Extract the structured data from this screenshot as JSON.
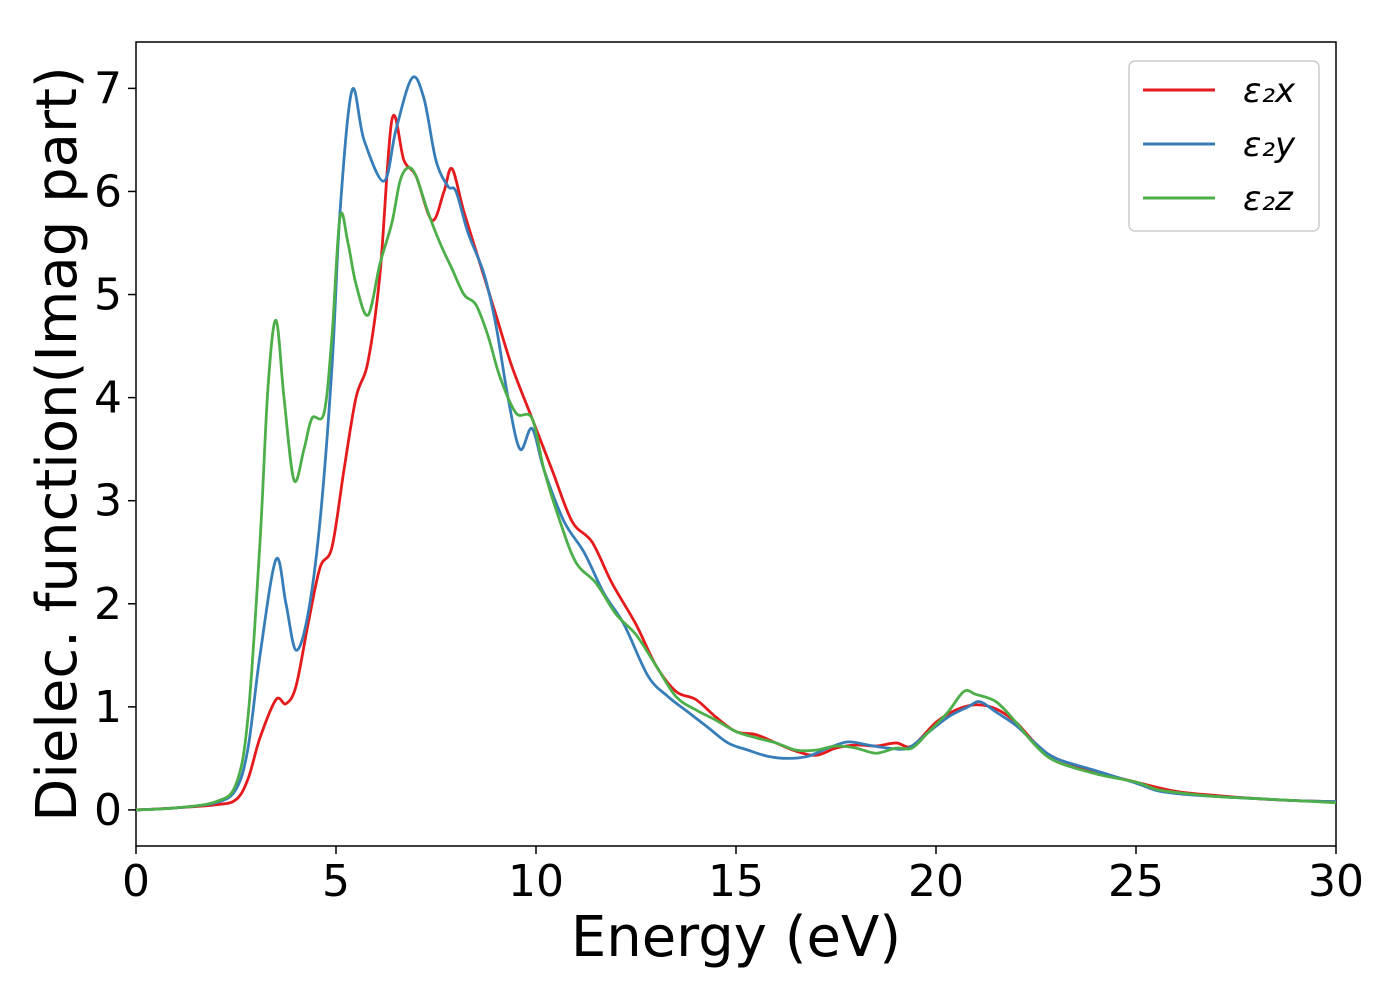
{
  "chart_data": {
    "type": "line",
    "xlabel": "Energy (eV)",
    "ylabel": "Dielec. function(Imag part)",
    "xlim": [
      0,
      30
    ],
    "ylim": [
      -0.35,
      7.45
    ],
    "xticks": [
      0,
      5,
      10,
      15,
      20,
      25,
      30
    ],
    "yticks": [
      0,
      1,
      2,
      3,
      4,
      5,
      6,
      7
    ],
    "grid": false,
    "legend_position": "top-right",
    "series": [
      {
        "name": "ε₂x",
        "color": "#e41a1c",
        "points": [
          [
            0,
            0
          ],
          [
            1,
            0.02
          ],
          [
            2,
            0.05
          ],
          [
            2.5,
            0.1
          ],
          [
            2.8,
            0.3
          ],
          [
            3.1,
            0.7
          ],
          [
            3.5,
            1.07
          ],
          [
            3.75,
            1.03
          ],
          [
            4.0,
            1.2
          ],
          [
            4.3,
            1.8
          ],
          [
            4.6,
            2.35
          ],
          [
            4.9,
            2.55
          ],
          [
            5.2,
            3.3
          ],
          [
            5.5,
            4.0
          ],
          [
            5.8,
            4.35
          ],
          [
            6.1,
            5.2
          ],
          [
            6.4,
            6.7
          ],
          [
            6.7,
            6.3
          ],
          [
            7.0,
            6.15
          ],
          [
            7.4,
            5.72
          ],
          [
            7.7,
            6.0
          ],
          [
            7.9,
            6.22
          ],
          [
            8.2,
            5.8
          ],
          [
            8.6,
            5.3
          ],
          [
            9.0,
            4.8
          ],
          [
            9.4,
            4.3
          ],
          [
            9.9,
            3.8
          ],
          [
            10.4,
            3.3
          ],
          [
            10.9,
            2.8
          ],
          [
            11.4,
            2.6
          ],
          [
            11.9,
            2.2
          ],
          [
            12.5,
            1.8
          ],
          [
            13.0,
            1.4
          ],
          [
            13.5,
            1.15
          ],
          [
            14.0,
            1.07
          ],
          [
            14.5,
            0.9
          ],
          [
            15.0,
            0.76
          ],
          [
            15.5,
            0.73
          ],
          [
            16.0,
            0.65
          ],
          [
            16.5,
            0.57
          ],
          [
            17.0,
            0.53
          ],
          [
            17.5,
            0.6
          ],
          [
            18.0,
            0.63
          ],
          [
            18.5,
            0.62
          ],
          [
            19.0,
            0.65
          ],
          [
            19.4,
            0.62
          ],
          [
            20.0,
            0.85
          ],
          [
            20.5,
            0.97
          ],
          [
            21.0,
            1.02
          ],
          [
            21.5,
            0.98
          ],
          [
            22.0,
            0.85
          ],
          [
            22.5,
            0.64
          ],
          [
            23.0,
            0.5
          ],
          [
            24.0,
            0.37
          ],
          [
            25.0,
            0.27
          ],
          [
            26.0,
            0.18
          ],
          [
            27.0,
            0.14
          ],
          [
            28.0,
            0.11
          ],
          [
            29.0,
            0.09
          ],
          [
            30.0,
            0.08
          ]
        ]
      },
      {
        "name": "ε₂y",
        "color": "#377eb8",
        "points": [
          [
            0,
            0
          ],
          [
            1,
            0.02
          ],
          [
            2,
            0.07
          ],
          [
            2.5,
            0.2
          ],
          [
            2.8,
            0.6
          ],
          [
            3.1,
            1.5
          ],
          [
            3.5,
            2.43
          ],
          [
            3.75,
            2.0
          ],
          [
            4.0,
            1.55
          ],
          [
            4.3,
            1.9
          ],
          [
            4.6,
            2.8
          ],
          [
            4.9,
            4.3
          ],
          [
            5.1,
            5.8
          ],
          [
            5.4,
            6.98
          ],
          [
            5.7,
            6.5
          ],
          [
            6.2,
            6.1
          ],
          [
            6.5,
            6.6
          ],
          [
            6.9,
            7.1
          ],
          [
            7.2,
            6.9
          ],
          [
            7.5,
            6.3
          ],
          [
            7.8,
            6.05
          ],
          [
            8.0,
            6.0
          ],
          [
            8.3,
            5.6
          ],
          [
            8.7,
            5.2
          ],
          [
            9.0,
            4.7
          ],
          [
            9.3,
            4.0
          ],
          [
            9.6,
            3.5
          ],
          [
            9.9,
            3.7
          ],
          [
            10.2,
            3.3
          ],
          [
            10.7,
            2.8
          ],
          [
            11.2,
            2.5
          ],
          [
            11.7,
            2.1
          ],
          [
            12.2,
            1.8
          ],
          [
            12.8,
            1.3
          ],
          [
            13.3,
            1.1
          ],
          [
            13.8,
            0.95
          ],
          [
            14.3,
            0.8
          ],
          [
            14.8,
            0.65
          ],
          [
            15.3,
            0.58
          ],
          [
            15.8,
            0.52
          ],
          [
            16.3,
            0.5
          ],
          [
            16.8,
            0.52
          ],
          [
            17.3,
            0.6
          ],
          [
            17.8,
            0.66
          ],
          [
            18.3,
            0.63
          ],
          [
            18.8,
            0.6
          ],
          [
            19.3,
            0.6
          ],
          [
            19.8,
            0.75
          ],
          [
            20.3,
            0.9
          ],
          [
            20.8,
            1.0
          ],
          [
            21.1,
            1.05
          ],
          [
            21.5,
            0.95
          ],
          [
            22.0,
            0.82
          ],
          [
            22.5,
            0.64
          ],
          [
            23.0,
            0.5
          ],
          [
            24.0,
            0.38
          ],
          [
            25.0,
            0.26
          ],
          [
            25.5,
            0.19
          ],
          [
            26.0,
            0.16
          ],
          [
            27.0,
            0.13
          ],
          [
            28.0,
            0.11
          ],
          [
            29.0,
            0.09
          ],
          [
            30.0,
            0.08
          ]
        ]
      },
      {
        "name": "ε₂z",
        "color": "#4daf4a",
        "points": [
          [
            0,
            0
          ],
          [
            1,
            0.02
          ],
          [
            2,
            0.08
          ],
          [
            2.5,
            0.25
          ],
          [
            2.8,
            0.9
          ],
          [
            3.1,
            2.6
          ],
          [
            3.3,
            4.1
          ],
          [
            3.5,
            4.75
          ],
          [
            3.7,
            4.0
          ],
          [
            3.95,
            3.2
          ],
          [
            4.2,
            3.5
          ],
          [
            4.4,
            3.8
          ],
          [
            4.7,
            3.85
          ],
          [
            4.9,
            4.6
          ],
          [
            5.1,
            5.75
          ],
          [
            5.3,
            5.5
          ],
          [
            5.5,
            5.1
          ],
          [
            5.8,
            4.8
          ],
          [
            6.1,
            5.3
          ],
          [
            6.4,
            5.7
          ],
          [
            6.6,
            6.1
          ],
          [
            6.8,
            6.23
          ],
          [
            7.0,
            6.15
          ],
          [
            7.3,
            5.8
          ],
          [
            7.6,
            5.5
          ],
          [
            7.9,
            5.25
          ],
          [
            8.2,
            5.0
          ],
          [
            8.5,
            4.9
          ],
          [
            8.8,
            4.6
          ],
          [
            9.1,
            4.2
          ],
          [
            9.5,
            3.85
          ],
          [
            9.9,
            3.8
          ],
          [
            10.2,
            3.3
          ],
          [
            10.6,
            2.8
          ],
          [
            11.0,
            2.4
          ],
          [
            11.5,
            2.2
          ],
          [
            12.0,
            1.9
          ],
          [
            12.5,
            1.7
          ],
          [
            13.0,
            1.4
          ],
          [
            13.5,
            1.1
          ],
          [
            14.0,
            0.97
          ],
          [
            14.5,
            0.87
          ],
          [
            15.0,
            0.76
          ],
          [
            15.5,
            0.7
          ],
          [
            16.0,
            0.65
          ],
          [
            16.5,
            0.58
          ],
          [
            17.0,
            0.58
          ],
          [
            17.5,
            0.62
          ],
          [
            18.0,
            0.6
          ],
          [
            18.5,
            0.55
          ],
          [
            19.0,
            0.6
          ],
          [
            19.4,
            0.6
          ],
          [
            19.8,
            0.75
          ],
          [
            20.3,
            0.95
          ],
          [
            20.7,
            1.15
          ],
          [
            21.0,
            1.12
          ],
          [
            21.5,
            1.05
          ],
          [
            22.0,
            0.85
          ],
          [
            22.5,
            0.62
          ],
          [
            23.0,
            0.47
          ],
          [
            24.0,
            0.35
          ],
          [
            25.0,
            0.27
          ],
          [
            25.5,
            0.2
          ],
          [
            26.0,
            0.17
          ],
          [
            27.0,
            0.13
          ],
          [
            28.0,
            0.11
          ],
          [
            29.0,
            0.09
          ],
          [
            30.0,
            0.07
          ]
        ]
      }
    ]
  }
}
